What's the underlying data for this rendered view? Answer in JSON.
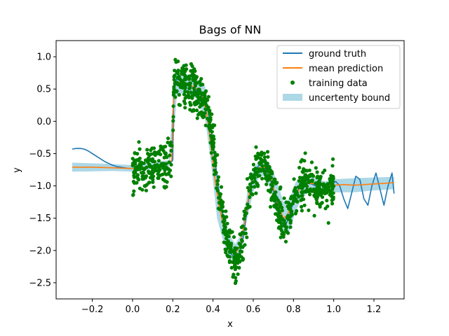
{
  "chart_data": {
    "type": "scatter",
    "title": "Bags of NN",
    "xlabel": "x",
    "ylabel": "y",
    "xlim": [
      -0.38,
      1.35
    ],
    "ylim": [
      -2.75,
      1.25
    ],
    "xticks": [
      -0.2,
      0.0,
      0.2,
      0.4,
      0.6,
      0.8,
      1.0,
      1.2
    ],
    "xtick_labels": [
      "−0.2",
      "0.0",
      "0.2",
      "0.4",
      "0.6",
      "0.8",
      "1.0",
      "1.2"
    ],
    "yticks": [
      -2.5,
      -2.0,
      -1.5,
      -1.0,
      -0.5,
      0.0,
      0.5,
      1.0
    ],
    "ytick_labels": [
      "−2.5",
      "−2.0",
      "−1.5",
      "−1.0",
      "−0.5",
      "0.0",
      "0.5",
      "1.0"
    ],
    "grid": false,
    "legend_position": "top-right",
    "colors": {
      "ground_truth": "#1f77b4",
      "mean_prediction": "#ff7f0e",
      "training_data": "#008000",
      "uncertainty_bound": "#add8e6"
    },
    "series": [
      {
        "name": "ground truth",
        "kind": "line",
        "points": [
          [
            -0.3,
            -0.43
          ],
          [
            -0.28,
            -0.42
          ],
          [
            -0.26,
            -0.42
          ],
          [
            -0.24,
            -0.43
          ],
          [
            -0.22,
            -0.46
          ],
          [
            -0.2,
            -0.5
          ],
          [
            -0.18,
            -0.54
          ],
          [
            -0.16,
            -0.58
          ],
          [
            -0.14,
            -0.62
          ],
          [
            -0.12,
            -0.65
          ],
          [
            -0.1,
            -0.68
          ],
          [
            -0.08,
            -0.7
          ],
          [
            -0.06,
            -0.71
          ],
          [
            -0.04,
            -0.72
          ],
          [
            -0.02,
            -0.73
          ],
          [
            0.0,
            -0.73
          ],
          [
            0.04,
            -0.72
          ],
          [
            0.08,
            -0.7
          ],
          [
            0.12,
            -0.68
          ],
          [
            0.16,
            -0.66
          ],
          [
            0.19,
            -0.64
          ],
          [
            0.2,
            -0.6
          ],
          [
            0.205,
            0.6
          ],
          [
            0.22,
            0.65
          ],
          [
            0.25,
            0.62
          ],
          [
            0.28,
            0.55
          ],
          [
            0.31,
            0.5
          ],
          [
            0.34,
            0.42
          ],
          [
            0.37,
            0.25
          ],
          [
            0.39,
            -0.1
          ],
          [
            0.41,
            -0.6
          ],
          [
            0.43,
            -1.1
          ],
          [
            0.45,
            -1.5
          ],
          [
            0.47,
            -1.85
          ],
          [
            0.49,
            -2.05
          ],
          [
            0.51,
            -2.12
          ],
          [
            0.53,
            -2.05
          ],
          [
            0.55,
            -1.8
          ],
          [
            0.57,
            -1.35
          ],
          [
            0.59,
            -0.95
          ],
          [
            0.61,
            -0.75
          ],
          [
            0.63,
            -0.68
          ],
          [
            0.65,
            -0.7
          ],
          [
            0.67,
            -0.78
          ],
          [
            0.69,
            -0.95
          ],
          [
            0.71,
            -1.2
          ],
          [
            0.73,
            -1.45
          ],
          [
            0.75,
            -1.62
          ],
          [
            0.77,
            -1.55
          ],
          [
            0.79,
            -1.35
          ],
          [
            0.81,
            -1.15
          ],
          [
            0.83,
            -1.02
          ],
          [
            0.85,
            -0.97
          ],
          [
            0.87,
            -0.96
          ],
          [
            0.89,
            -0.97
          ],
          [
            0.91,
            -1.0
          ],
          [
            0.93,
            -1.04
          ],
          [
            0.95,
            -1.06
          ],
          [
            0.97,
            -1.04
          ],
          [
            0.99,
            -0.98
          ],
          [
            1.01,
            -0.93
          ],
          [
            1.03,
            -1.0
          ],
          [
            1.05,
            -1.2
          ],
          [
            1.07,
            -1.35
          ],
          [
            1.09,
            -1.1
          ],
          [
            1.11,
            -0.85
          ],
          [
            1.13,
            -0.9
          ],
          [
            1.15,
            -1.2
          ],
          [
            1.17,
            -1.3
          ],
          [
            1.19,
            -1.0
          ],
          [
            1.21,
            -0.8
          ],
          [
            1.23,
            -1.05
          ],
          [
            1.25,
            -1.3
          ],
          [
            1.27,
            -1.0
          ],
          [
            1.29,
            -0.8
          ],
          [
            1.3,
            -1.12
          ]
        ]
      },
      {
        "name": "mean prediction",
        "kind": "line",
        "points": [
          [
            -0.3,
            -0.71
          ],
          [
            -0.2,
            -0.71
          ],
          [
            -0.1,
            -0.72
          ],
          [
            0.0,
            -0.73
          ],
          [
            0.1,
            -0.7
          ],
          [
            0.18,
            -0.65
          ],
          [
            0.195,
            -0.6
          ],
          [
            0.2,
            0.1
          ],
          [
            0.21,
            0.55
          ],
          [
            0.24,
            0.62
          ],
          [
            0.28,
            0.58
          ],
          [
            0.32,
            0.5
          ],
          [
            0.35,
            0.35
          ],
          [
            0.37,
            0.1
          ],
          [
            0.39,
            -0.4
          ],
          [
            0.41,
            -0.9
          ],
          [
            0.43,
            -1.3
          ],
          [
            0.45,
            -1.6
          ],
          [
            0.47,
            -1.85
          ],
          [
            0.49,
            -2.0
          ],
          [
            0.51,
            -2.05
          ],
          [
            0.53,
            -1.95
          ],
          [
            0.55,
            -1.7
          ],
          [
            0.57,
            -1.3
          ],
          [
            0.59,
            -0.95
          ],
          [
            0.61,
            -0.8
          ],
          [
            0.63,
            -0.72
          ],
          [
            0.65,
            -0.7
          ],
          [
            0.67,
            -0.75
          ],
          [
            0.69,
            -0.9
          ],
          [
            0.71,
            -1.15
          ],
          [
            0.73,
            -1.35
          ],
          [
            0.75,
            -1.5
          ],
          [
            0.77,
            -1.45
          ],
          [
            0.79,
            -1.3
          ],
          [
            0.81,
            -1.15
          ],
          [
            0.83,
            -1.05
          ],
          [
            0.85,
            -0.98
          ],
          [
            0.88,
            -0.96
          ],
          [
            0.92,
            -0.97
          ],
          [
            0.96,
            -1.0
          ],
          [
            1.0,
            -0.99
          ],
          [
            1.05,
            -0.98
          ],
          [
            1.1,
            -0.99
          ],
          [
            1.15,
            -0.98
          ],
          [
            1.2,
            -0.97
          ],
          [
            1.25,
            -0.96
          ],
          [
            1.3,
            -0.95
          ]
        ]
      },
      {
        "name": "training data",
        "kind": "scatter",
        "x_range": [
          0.0,
          1.0
        ],
        "n_points": 1000
      },
      {
        "name": "uncertenty bound",
        "kind": "band",
        "points": [
          [
            -0.3,
            -0.64,
            -0.78
          ],
          [
            -0.1,
            -0.66,
            -0.77
          ],
          [
            0.0,
            -0.68,
            -0.78
          ],
          [
            0.18,
            -0.6,
            -0.7
          ],
          [
            0.2,
            0.3,
            -0.4
          ],
          [
            0.22,
            0.75,
            0.4
          ],
          [
            0.26,
            0.75,
            0.45
          ],
          [
            0.32,
            0.65,
            0.35
          ],
          [
            0.36,
            0.55,
            0.05
          ],
          [
            0.39,
            -0.1,
            -0.65
          ],
          [
            0.42,
            -0.8,
            -1.5
          ],
          [
            0.45,
            -1.4,
            -1.85
          ],
          [
            0.48,
            -1.75,
            -2.1
          ],
          [
            0.51,
            -1.9,
            -2.2
          ],
          [
            0.54,
            -1.75,
            -2.05
          ],
          [
            0.57,
            -1.1,
            -1.5
          ],
          [
            0.6,
            -0.75,
            -1.1
          ],
          [
            0.63,
            -0.6,
            -0.85
          ],
          [
            0.66,
            -0.58,
            -0.85
          ],
          [
            0.69,
            -0.7,
            -1.1
          ],
          [
            0.72,
            -0.95,
            -1.5
          ],
          [
            0.75,
            -1.25,
            -1.75
          ],
          [
            0.78,
            -1.2,
            -1.7
          ],
          [
            0.81,
            -0.95,
            -1.4
          ],
          [
            0.84,
            -0.85,
            -1.2
          ],
          [
            0.88,
            -0.85,
            -1.08
          ],
          [
            0.92,
            -0.9,
            -1.08
          ],
          [
            0.96,
            -0.93,
            -1.08
          ],
          [
            1.0,
            -0.9,
            -1.1
          ],
          [
            1.1,
            -0.88,
            -1.1
          ],
          [
            1.2,
            -0.87,
            -1.07
          ],
          [
            1.3,
            -0.86,
            -1.05
          ]
        ]
      }
    ]
  }
}
